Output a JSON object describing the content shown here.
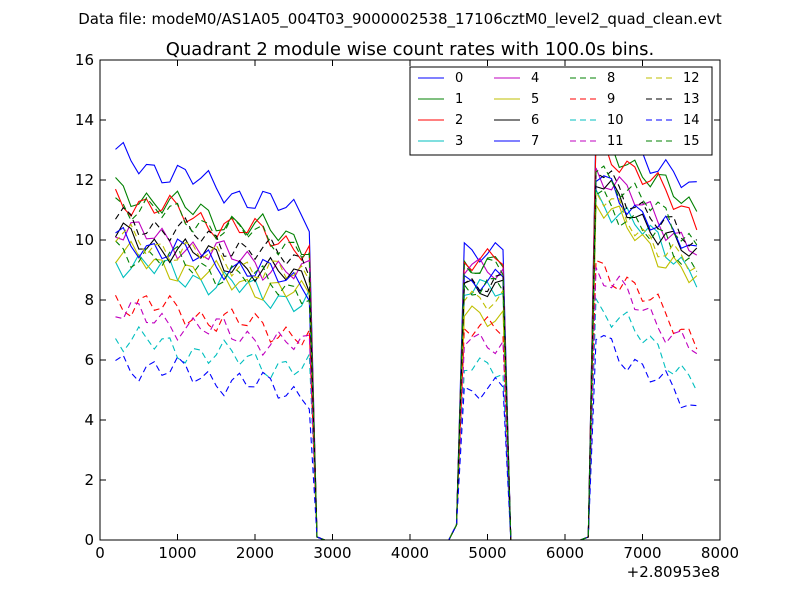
{
  "chart_data": {
    "type": "line",
    "suptitle": "Data file: modeM0/AS1A05_004T03_9000002538_17106cztM0_level2_quad_clean.evt",
    "title": "Quadrant 2 module wise count rates with 100.0s bins.",
    "xlabel": "",
    "ylabel": "",
    "x_offset_label": "+2.80953e8",
    "xlim": [
      0,
      8000
    ],
    "ylim": [
      0,
      16
    ],
    "xticks": [
      0,
      1000,
      2000,
      3000,
      4000,
      5000,
      6000,
      7000,
      8000
    ],
    "yticks": [
      0,
      2,
      4,
      6,
      8,
      10,
      12,
      14,
      16
    ],
    "legend_position": "top-right",
    "x": [
      200,
      300,
      400,
      500,
      600,
      700,
      800,
      900,
      1000,
      1100,
      1200,
      1300,
      1400,
      1500,
      1600,
      1700,
      1800,
      1900,
      2000,
      2100,
      2200,
      2300,
      2400,
      2500,
      2600,
      2700,
      2800,
      2900,
      3000,
      3100,
      3200,
      3300,
      3400,
      3500,
      3600,
      3700,
      3800,
      3900,
      4000,
      4100,
      4200,
      4300,
      4400,
      4500,
      4600,
      4700,
      4800,
      4900,
      5000,
      5100,
      5200,
      5300,
      5400,
      5500,
      5600,
      5700,
      5800,
      5900,
      6000,
      6100,
      6200,
      6300,
      6400,
      6500,
      6600,
      6700,
      6800,
      6900,
      7000,
      7100,
      7200,
      7300,
      7400,
      7500,
      7600,
      7700
    ],
    "series": [
      {
        "name": "0",
        "color": "#0000ff",
        "dash": "solid",
        "base": 11.8,
        "amp": 1.7,
        "second": 9.7,
        "third": 13.2
      },
      {
        "name": "1",
        "color": "#008000",
        "dash": "solid",
        "base": 10.8,
        "amp": 1.5,
        "second": 9.2,
        "third": 12.6
      },
      {
        "name": "2",
        "color": "#ff0000",
        "dash": "solid",
        "base": 10.6,
        "amp": 1.4,
        "second": 9.3,
        "third": 12.4
      },
      {
        "name": "3",
        "color": "#00bfbf",
        "dash": "solid",
        "base": 8.6,
        "amp": 1.2,
        "second": 8.3,
        "third": 10.6
      },
      {
        "name": "4",
        "color": "#bf00bf",
        "dash": "solid",
        "base": 9.6,
        "amp": 1.3,
        "second": 9.0,
        "third": 11.4
      },
      {
        "name": "5",
        "color": "#bfbf00",
        "dash": "solid",
        "base": 8.8,
        "amp": 1.2,
        "second": 7.5,
        "third": 10.3
      },
      {
        "name": "6",
        "color": "#000000",
        "dash": "solid",
        "base": 9.4,
        "amp": 1.3,
        "second": 8.5,
        "third": 11.0
      },
      {
        "name": "7",
        "color": "#0000ff",
        "dash": "solid",
        "base": 9.3,
        "amp": 1.3,
        "second": 8.7,
        "third": 11.2
      },
      {
        "name": "8",
        "color": "#008000",
        "dash": "dashed",
        "base": 9.0,
        "amp": 1.2,
        "second": 8.4,
        "third": 10.7
      },
      {
        "name": "9",
        "color": "#ff0000",
        "dash": "dashed",
        "base": 7.4,
        "amp": 1.0,
        "second": 7.0,
        "third": 8.4
      },
      {
        "name": "10",
        "color": "#00bfbf",
        "dash": "dashed",
        "base": 6.2,
        "amp": 0.9,
        "second": 5.7,
        "third": 7.0
      },
      {
        "name": "11",
        "color": "#bf00bf",
        "dash": "dashed",
        "base": 7.0,
        "amp": 1.0,
        "second": 6.6,
        "third": 8.0
      },
      {
        "name": "12",
        "color": "#bfbf00",
        "dash": "dashed",
        "base": 9.4,
        "amp": 1.2,
        "second": 8.1,
        "third": 10.6
      },
      {
        "name": "13",
        "color": "#000000",
        "dash": "dashed",
        "base": 10.0,
        "amp": 1.3,
        "second": 8.6,
        "third": 11.4
      },
      {
        "name": "14",
        "color": "#0000ff",
        "dash": "dashed",
        "base": 5.4,
        "amp": 0.9,
        "second": 5.0,
        "third": 6.0
      },
      {
        "name": "15",
        "color": "#008000",
        "dash": "dashed",
        "base": 10.5,
        "amp": 1.3,
        "second": 9.0,
        "third": 11.6
      }
    ]
  }
}
